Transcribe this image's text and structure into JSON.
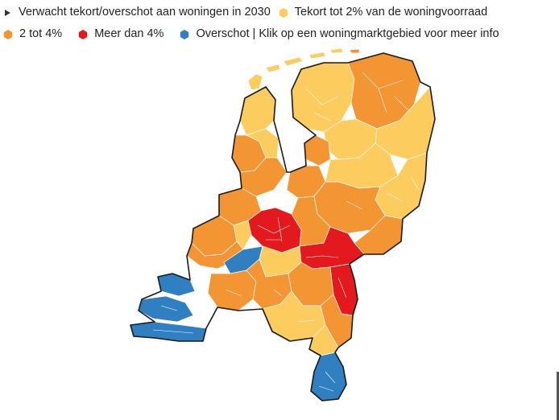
{
  "legend": {
    "toggle_label": "Verwacht tekort/overschot aan woningen in 2030",
    "categories": [
      {
        "label": "Tekort tot 2% van de woningvoorraad",
        "color": "#fccc5e",
        "icon": "hexagon-icon"
      },
      {
        "label": "2 tot 4%",
        "color": "#f39532",
        "icon": "hexagon-icon"
      },
      {
        "label": "Meer dan 4%",
        "color": "#e3191e",
        "icon": "hexagon-icon"
      },
      {
        "label": "Overschot | Klik op een woningmarktgebied voor meer info",
        "color": "#2f7fc1",
        "icon": "hexagon-icon"
      }
    ]
  },
  "colors": {
    "low": "#fccc5e",
    "mid": "#f39532",
    "high": "#e3191e",
    "surplus": "#2f7fc1",
    "border": "#1a1a1a",
    "line": "#ffffff"
  }
}
